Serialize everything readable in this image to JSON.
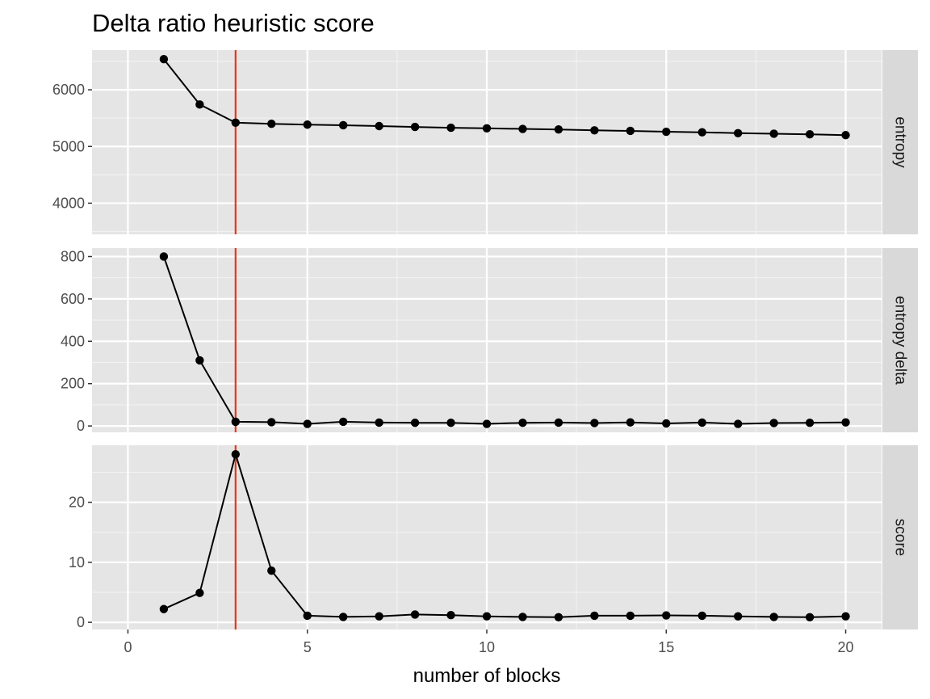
{
  "chart_data": {
    "type": "line",
    "title": "Delta ratio heuristic score",
    "xlabel": "number of blocks",
    "ylabel": "",
    "x_ticks": [
      0,
      5,
      10,
      15,
      20
    ],
    "xlim": [
      -1,
      21
    ],
    "vline": {
      "x": 3,
      "color": "#e8341c"
    },
    "grid": true,
    "point_color": "#000000",
    "x": [
      1,
      2,
      3,
      4,
      5,
      6,
      7,
      8,
      9,
      10,
      11,
      12,
      13,
      14,
      15,
      16,
      17,
      18,
      19,
      20
    ],
    "facets": [
      {
        "name": "entropy",
        "ylim": [
          3450,
          6700
        ],
        "y_ticks": [
          4000,
          5000,
          6000
        ],
        "values": [
          6540,
          5740,
          5420,
          5400,
          5385,
          5375,
          5360,
          5345,
          5330,
          5320,
          5310,
          5300,
          5285,
          5275,
          5260,
          5250,
          5235,
          5225,
          5215,
          5200
        ]
      },
      {
        "name": "entropy delta",
        "ylim": [
          -30,
          840
        ],
        "y_ticks": [
          0,
          200,
          400,
          600,
          800
        ],
        "values": [
          800,
          310,
          20,
          18,
          10,
          20,
          16,
          15,
          15,
          10,
          15,
          16,
          14,
          17,
          12,
          16,
          10,
          14,
          15,
          17
        ]
      },
      {
        "name": "score",
        "ylim": [
          -1.2,
          29.5
        ],
        "y_ticks": [
          0,
          10,
          20
        ],
        "values": [
          2.2,
          4.9,
          28.0,
          8.6,
          1.1,
          0.9,
          1.0,
          1.3,
          1.2,
          1.0,
          0.9,
          0.85,
          1.1,
          1.1,
          1.15,
          1.1,
          1.0,
          0.9,
          0.85,
          1.0
        ]
      }
    ]
  }
}
